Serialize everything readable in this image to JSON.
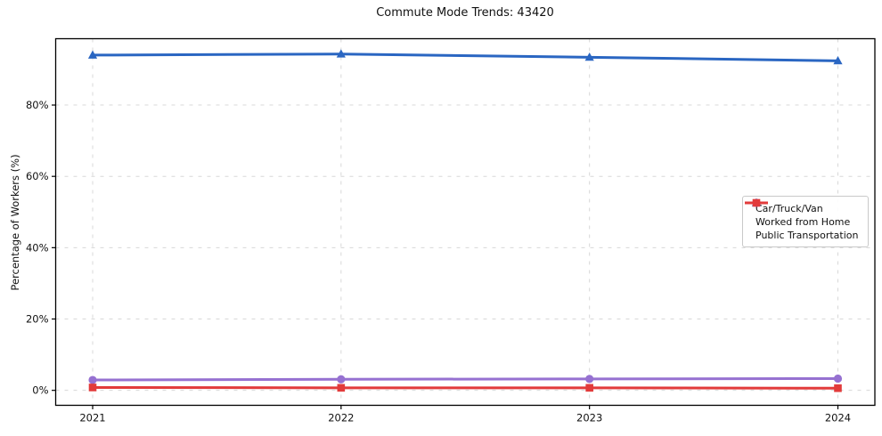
{
  "chart_data": {
    "type": "line",
    "title": "Commute Mode Trends: 43420",
    "xlabel": "",
    "ylabel": "Percentage of Workers (%)",
    "categories": [
      "2021",
      "2022",
      "2023",
      "2024"
    ],
    "series": [
      {
        "name": "Car/Truck/Van",
        "color": "#2a66c2",
        "marker": "triangle",
        "values": [
          94.0,
          94.3,
          93.4,
          92.4
        ]
      },
      {
        "name": "Worked from Home",
        "color": "#9671d1",
        "marker": "circle",
        "values": [
          2.9,
          3.1,
          3.2,
          3.3
        ]
      },
      {
        "name": "Public Transportation",
        "color": "#e23b3b",
        "marker": "square",
        "values": [
          0.8,
          0.7,
          0.7,
          0.6
        ]
      }
    ],
    "yticks": [
      0,
      20,
      40,
      60,
      80
    ],
    "ytick_labels": [
      "0%",
      "20%",
      "40%",
      "60%",
      "80%"
    ],
    "ylim": [
      -4.2,
      98.6
    ],
    "grid": true,
    "grid_style": "dashed",
    "grid_color": "#d8d8d8",
    "spine_color": "#000000",
    "legend_position": "center right",
    "background": "#ffffff"
  }
}
